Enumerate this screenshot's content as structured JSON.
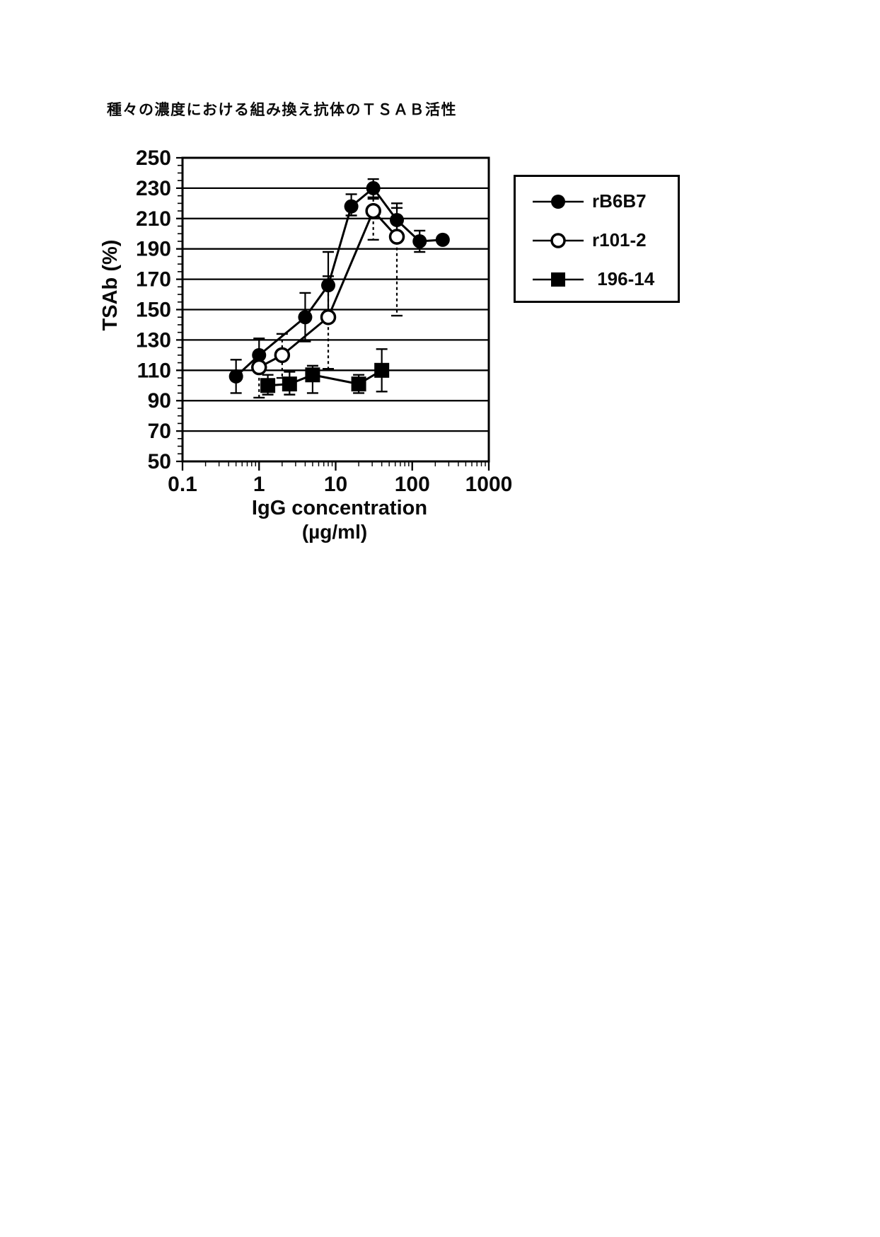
{
  "page": {
    "title": "種々の濃度における組み換え抗体のＴＳＡＢ活性"
  },
  "chart_data": {
    "type": "line",
    "title": "種々の濃度における組み換え抗体のＴＳＡＢ活性",
    "xlabel": "IgG concentration",
    "xlabel_unit": "(µg/ml)",
    "ylabel": "TSAb (%)",
    "x_scale": "log",
    "xlim": [
      0.1,
      1000
    ],
    "ylim": [
      50,
      250
    ],
    "x_ticks": [
      {
        "label": "0.1",
        "value": 0.1
      },
      {
        "label": "1",
        "value": 1
      },
      {
        "label": "10",
        "value": 10
      },
      {
        "label": "100",
        "value": 100
      },
      {
        "label": "1000",
        "value": 1000
      }
    ],
    "y_ticks": [
      250,
      230,
      210,
      190,
      170,
      150,
      130,
      110,
      90,
      70,
      50
    ],
    "y_minor_tick_step": 5,
    "grid": "horizontal",
    "legend_position": "outside-right",
    "series": [
      {
        "name": "rB6B7",
        "marker": "filled-circle",
        "errorbar_style": "solid",
        "points": [
          {
            "x": 0.5,
            "y": 106,
            "err": [
              95,
              117
            ]
          },
          {
            "x": 1,
            "y": 120,
            "err": [
              109,
              131
            ]
          },
          {
            "x": 4,
            "y": 145,
            "err": [
              129,
              161
            ]
          },
          {
            "x": 8,
            "y": 166,
            "err": [
              148,
              188
            ]
          },
          {
            "x": 16,
            "y": 218,
            "err": [
              212,
              226
            ]
          },
          {
            "x": 31,
            "y": 230,
            "err": [
              224,
              236
            ]
          },
          {
            "x": 63,
            "y": 209,
            "err": [
              198,
              220
            ]
          },
          {
            "x": 125,
            "y": 195,
            "err": [
              188,
              202
            ]
          },
          {
            "x": 250,
            "y": 196,
            "err": null
          }
        ]
      },
      {
        "name": "r101-2",
        "marker": "open-circle",
        "errorbar_style": "dashed",
        "points": [
          {
            "x": 1,
            "y": 112,
            "err": [
              92,
              120
            ]
          },
          {
            "x": 2,
            "y": 120,
            "err": [
              105,
              134
            ]
          },
          {
            "x": 8,
            "y": 145,
            "err": [
              111,
              172
            ]
          },
          {
            "x": 31,
            "y": 215,
            "err": [
              196,
              223
            ]
          },
          {
            "x": 63,
            "y": 198,
            "err": [
              146,
              217
            ]
          }
        ]
      },
      {
        "name": "196-14",
        "marker": "filled-square",
        "errorbar_style": "solid",
        "points": [
          {
            "x": 1.3,
            "y": 100,
            "err": [
              94,
              107
            ]
          },
          {
            "x": 2.5,
            "y": 101,
            "err": [
              94,
              109
            ]
          },
          {
            "x": 5,
            "y": 107,
            "err": [
              95,
              113
            ]
          },
          {
            "x": 20,
            "y": 101,
            "err": [
              95,
              107
            ]
          },
          {
            "x": 40,
            "y": 110,
            "err": [
              96,
              124
            ]
          }
        ]
      }
    ]
  }
}
